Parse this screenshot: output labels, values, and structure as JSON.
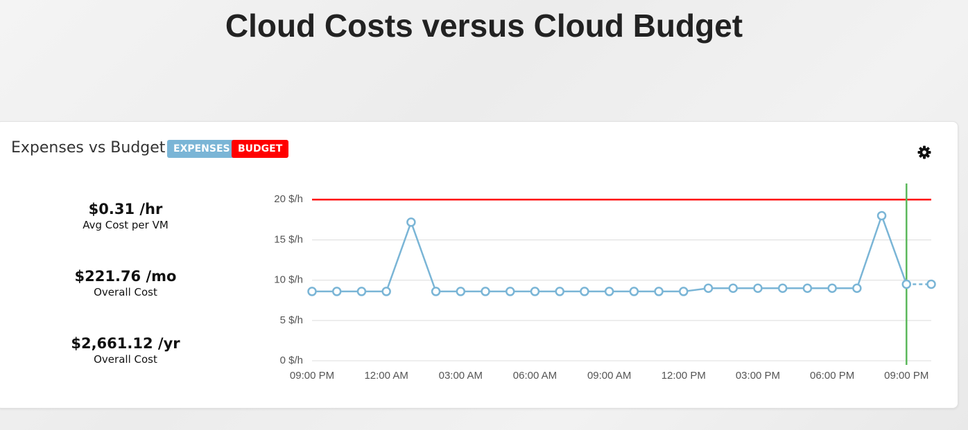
{
  "header": {
    "title": "Cloud Costs versus Cloud Budget"
  },
  "panel": {
    "title": "Expenses vs Budget",
    "stats": [
      {
        "value": "$0.31 /hr",
        "label": "Avg Cost per VM"
      },
      {
        "value": "$221.76 /mo",
        "label": "Overall Cost"
      },
      {
        "value": "$2,661.12 /yr",
        "label": "Overall Cost"
      }
    ]
  },
  "chart_data": {
    "type": "line",
    "categories": [
      "09:00 PM",
      null,
      null,
      "12:00 AM",
      null,
      null,
      "03:00 AM",
      null,
      null,
      "06:00 AM",
      null,
      null,
      "09:00 AM",
      null,
      null,
      "12:00 PM",
      null,
      null,
      "03:00 PM",
      null,
      null,
      "06:00 PM",
      null,
      null,
      "09:00 PM",
      null
    ],
    "series": [
      {
        "name": "EXPENSES",
        "color": "#7ab5d6",
        "values": [
          8.6,
          8.6,
          8.6,
          8.6,
          17.2,
          8.6,
          8.6,
          8.6,
          8.6,
          8.6,
          8.6,
          8.6,
          8.6,
          8.6,
          8.6,
          8.6,
          9.0,
          9.0,
          9.0,
          9.0,
          9.0,
          9.0,
          9.0,
          18.0,
          9.5,
          9.5
        ]
      },
      {
        "name": "BUDGET",
        "color": "#ff0000",
        "values": [
          20,
          20,
          20,
          20,
          20,
          20,
          20,
          20,
          20,
          20,
          20,
          20,
          20,
          20,
          20,
          20,
          20,
          20,
          20,
          20,
          20,
          20,
          20,
          20,
          20,
          20
        ]
      }
    ],
    "ylim": [
      0,
      22
    ],
    "yticks": [
      {
        "value": 0,
        "label": "0 $/h"
      },
      {
        "value": 5,
        "label": "5 $/h"
      },
      {
        "value": 10,
        "label": "10 $/h"
      },
      {
        "value": 15,
        "label": "15 $/h"
      },
      {
        "value": 20,
        "label": "20 $/h"
      }
    ],
    "grid": true
  }
}
